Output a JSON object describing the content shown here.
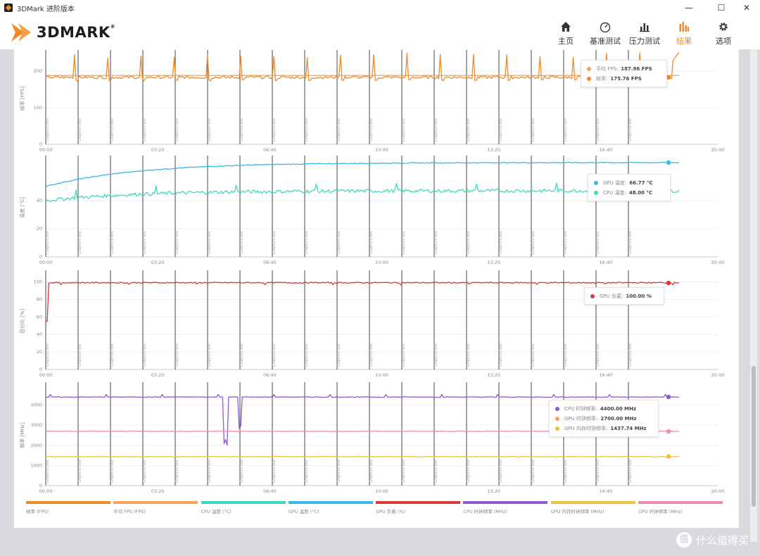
{
  "window": {
    "title": "3DMark 进阶版本",
    "minimize": "—",
    "maximize": "☐",
    "close": "✕"
  },
  "header": {
    "logo": "3DMARK",
    "logo_reg": "®",
    "nav": [
      {
        "label": "主页",
        "icon": "home-icon",
        "active": false
      },
      {
        "label": "基准测试",
        "icon": "gauge-icon",
        "active": false
      },
      {
        "label": "压力测试",
        "icon": "stress-chart-icon",
        "active": false
      },
      {
        "label": "结果",
        "icon": "results-bars-icon",
        "active": true
      },
      {
        "label": "选项",
        "icon": "gear-icon",
        "active": false
      }
    ]
  },
  "colors": {
    "accent": "#f08a24",
    "fps": "#f08a24",
    "fps_avg": "#f5a35a",
    "cpu_temp": "#3fd9c0",
    "gpu_temp": "#3ab8e6",
    "gpu_load": "#d83a3a",
    "cpu_clock": "#8e5bd0",
    "gpu_mem_clock": "#f0c040",
    "gpu_core_clock": "#f08ab0"
  },
  "time_ticks": [
    "00:00",
    "03:20",
    "06:40",
    "10:00",
    "13:20",
    "16:40",
    "20:00"
  ],
  "chart_data": [
    {
      "type": "line",
      "ylabel": "帧率 [FPS]",
      "yticks": [
        "0",
        "100",
        "200"
      ],
      "ylim": [
        0,
        250
      ],
      "legend": [
        {
          "label": "平均 FPS:",
          "value": "187.96 FPS",
          "color": "#f5a35a"
        },
        {
          "label": "帧率:",
          "value": "175.76 FPS",
          "color": "#f08a24"
        }
      ],
      "series": [
        {
          "name": "平均 FPS",
          "color": "#f5a35a",
          "flat": 188
        },
        {
          "name": "帧率",
          "color": "#f08a24",
          "base": 183,
          "peak": 250,
          "jitter": 8
        }
      ]
    },
    {
      "type": "line",
      "ylabel": "温度 [°C]",
      "yticks": [
        "0",
        "20",
        "40"
      ],
      "ylim": [
        0,
        70
      ],
      "legend": [
        {
          "label": "GPU 温度:",
          "value": "66.77 °C",
          "color": "#3ab8e6"
        },
        {
          "label": "CPU 温度:",
          "value": "48.00 °C",
          "color": "#3fd9c0"
        }
      ],
      "series": [
        {
          "name": "GPU 温度",
          "color": "#3ab8e6",
          "start": 50,
          "end": 67
        },
        {
          "name": "CPU 温度",
          "color": "#3fd9c0",
          "start": 40,
          "end": 47,
          "jitter": 2.5
        }
      ]
    },
    {
      "type": "line",
      "ylabel": "百分比 [%]",
      "yticks": [
        "0",
        "20",
        "40",
        "60",
        "80",
        "100"
      ],
      "ylim": [
        0,
        110
      ],
      "legend": [
        {
          "label": "GPU 负载:",
          "value": "100.00 %",
          "color": "#d83a3a"
        }
      ],
      "series": [
        {
          "name": "GPU 负载",
          "color": "#d83a3a",
          "flat": 99,
          "start_dip": 55
        }
      ]
    },
    {
      "type": "line",
      "ylabel": "频率 [MHz]",
      "yticks": [
        "0",
        "1000",
        "2000",
        "3000",
        "4000"
      ],
      "ylim": [
        0,
        5000
      ],
      "legend": [
        {
          "label": "CPU 时钟频率:",
          "value": "4400.00 MHz",
          "color": "#8e5bd0"
        },
        {
          "label": "GPU 时钟频率:",
          "value": "2700.00 MHz",
          "color": "#f0a060"
        },
        {
          "label": "GPU 内存时钟频率:",
          "value": "1437.74 MHz",
          "color": "#f0c040"
        }
      ],
      "series": [
        {
          "name": "CPU 时钟频率",
          "color": "#8e5bd0",
          "flat": 4400
        },
        {
          "name": "GPU 时钟频率",
          "color": "#f08ab0",
          "flat": 2700
        },
        {
          "name": "GPU 内存时钟频率",
          "color": "#f0c040",
          "flat": 1440
        }
      ]
    }
  ],
  "bottom_legend": [
    {
      "label": "帧率 (FPS)",
      "color": "#f08a24"
    },
    {
      "label": "平均 FPS (FPS)",
      "color": "#f5a35a"
    },
    {
      "label": "CPU 温度 (°C)",
      "color": "#3fd9c0"
    },
    {
      "label": "GPU 温度 (°C)",
      "color": "#3ab8e6"
    },
    {
      "label": "GPU 负载 (%)",
      "color": "#d83a3a"
    },
    {
      "label": "CPU 时钟频率 (MHz)",
      "color": "#8e5bd0"
    },
    {
      "label": "GPU 内存时钟频率 (MHz)",
      "color": "#f0c040"
    },
    {
      "label": "GPU 时钟频率 (MHz)",
      "color": "#f08ab0"
    }
  ],
  "marker_label": "Graphics test",
  "watermark": "什么值得买",
  "watermark_icon": "值"
}
